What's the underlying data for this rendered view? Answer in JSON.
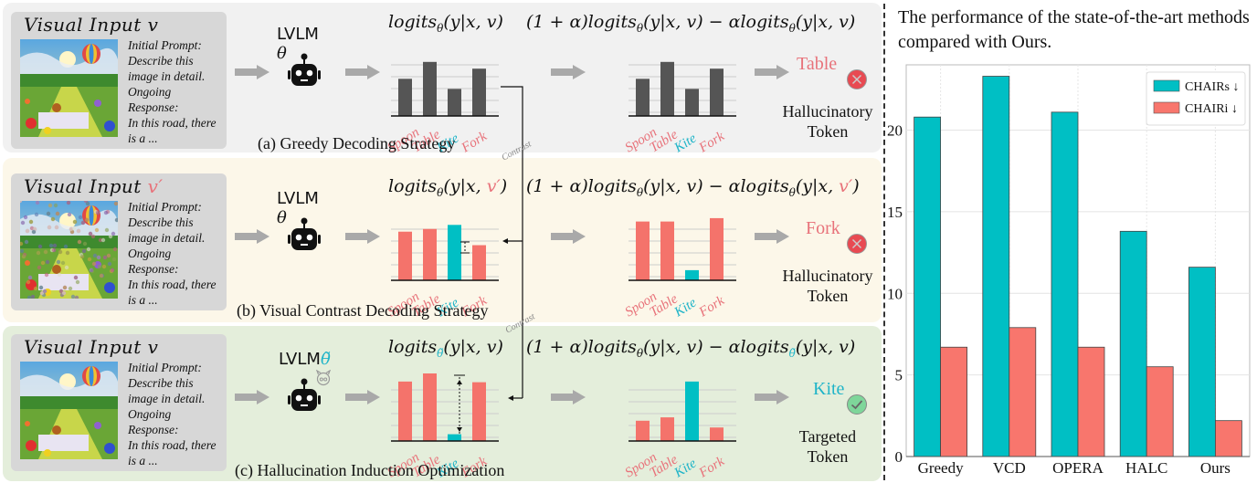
{
  "rows": [
    {
      "id": "a",
      "input_title": "Visual Input ",
      "input_var": "v",
      "prompt_lines": [
        "Initial Prompt:",
        "Describe this",
        "image in detail.",
        "Ongoing",
        "Response:",
        "In this road, there",
        "is a ..."
      ],
      "model_label": "LVLM ",
      "model_param": "θ",
      "logit_formula": "logits",
      "logit_sub": "θ",
      "logit_args": "(y|x, v)",
      "contrast_formula_a": "(1 + α)logits",
      "contrast_sub_a": "θ",
      "contrast_args_a": "(y|x, v) − αlogits",
      "contrast_sub_b": "θ",
      "contrast_args_b": "(y|x, v)",
      "output_token": "Table",
      "output_status": "Hallucinatory",
      "output_status2": "Token",
      "caption": "(a) Greedy Decoding Strategy",
      "bars_left": [
        0.55,
        0.8,
        0.4,
        0.7
      ],
      "bars_right": [
        0.55,
        0.8,
        0.4,
        0.7
      ]
    },
    {
      "id": "b",
      "input_title": "Visual Input ",
      "input_var": "v′",
      "prompt_lines": [
        "Initial Prompt:",
        "Describe this",
        "image in detail.",
        "Ongoing",
        "Response:",
        "In this road, there",
        "is a ..."
      ],
      "model_label": "LVLM ",
      "model_param": "θ",
      "logit_formula": "logits",
      "logit_sub": "θ",
      "logit_args_pre": "(y|x, ",
      "logit_args_var": "v′",
      "logit_args_post": ")",
      "contrast_formula_a": "(1 + α)logits",
      "contrast_sub_a": "θ",
      "contrast_args_a": "(y|x, v) − αlogits",
      "contrast_sub_b": "θ",
      "contrast_args_b_pre": "(y|x, ",
      "contrast_args_b_var": "v′",
      "contrast_args_b_post": ")",
      "output_token": "Fork",
      "output_status": "Hallucinatory",
      "output_status2": "Token",
      "caption": "(b) Visual Contrast Decoding Strategy",
      "bars_left": [
        0.72,
        0.76,
        0.82,
        0.52
      ],
      "bars_right": [
        0.87,
        0.87,
        0.15,
        0.92
      ]
    },
    {
      "id": "c",
      "input_title": "Visual Input ",
      "input_var": "v",
      "prompt_lines": [
        "Initial Prompt:",
        "Describe this",
        "image in detail.",
        "Ongoing",
        "Response:",
        "In this road, there",
        "is a ..."
      ],
      "model_label": "LVLM",
      "model_param": "θ̃",
      "logit_formula": "logits",
      "logit_sub": "θ̃",
      "logit_args": "(y|x, v)",
      "contrast_formula_a": "(1 + α)logits",
      "contrast_sub_a": "θ",
      "contrast_args_a": "(y|x, v) − αlogits",
      "contrast_sub_b": "θ̃",
      "contrast_args_b": "(y|x, v)",
      "output_token": "Kite",
      "output_status": "Targeted",
      "output_status2": "Token",
      "caption": "(c) Hallucination Induction Optimization",
      "bars_left": [
        0.88,
        1.0,
        0.1,
        0.87
      ],
      "bars_right": [
        0.3,
        0.35,
        0.88,
        0.2
      ]
    }
  ],
  "token_labels": [
    "Spoon",
    "Table",
    "Kite",
    "Fork"
  ],
  "contrast_label": "Contrast",
  "icons": {
    "robot": "robot-icon",
    "devil": "devil-face-icon",
    "wrong": "x-circle-icon",
    "right": "check-circle-icon",
    "arrow": "right-arrow-icon"
  },
  "colors": {
    "red": "#f4736b",
    "teal": "#00bfc4",
    "dark": "#555555",
    "token_red": "#e8727a",
    "token_teal": "#1fb4c8"
  },
  "chart_title": "The performance of the state-of-the-art methods compared with Ours.",
  "chart_data": {
    "type": "bar",
    "title": "The performance of the state-of-the-art methods compared with Ours.",
    "categories": [
      "Greedy",
      "VCD",
      "OPERA",
      "HALC",
      "Ours"
    ],
    "series": [
      {
        "name": "CHAIRs ↓",
        "color": "#00bfc4",
        "values": [
          20.8,
          23.3,
          21.1,
          13.8,
          11.6
        ]
      },
      {
        "name": "CHAIRi ↓",
        "color": "#f8766d",
        "values": [
          6.7,
          7.9,
          6.7,
          5.5,
          2.2
        ]
      }
    ],
    "xlabel": "",
    "ylabel": "",
    "yticks": [
      0,
      5,
      10,
      15,
      20
    ],
    "ylim": [
      0,
      24
    ],
    "grid": true,
    "legend_position": "upper right"
  }
}
